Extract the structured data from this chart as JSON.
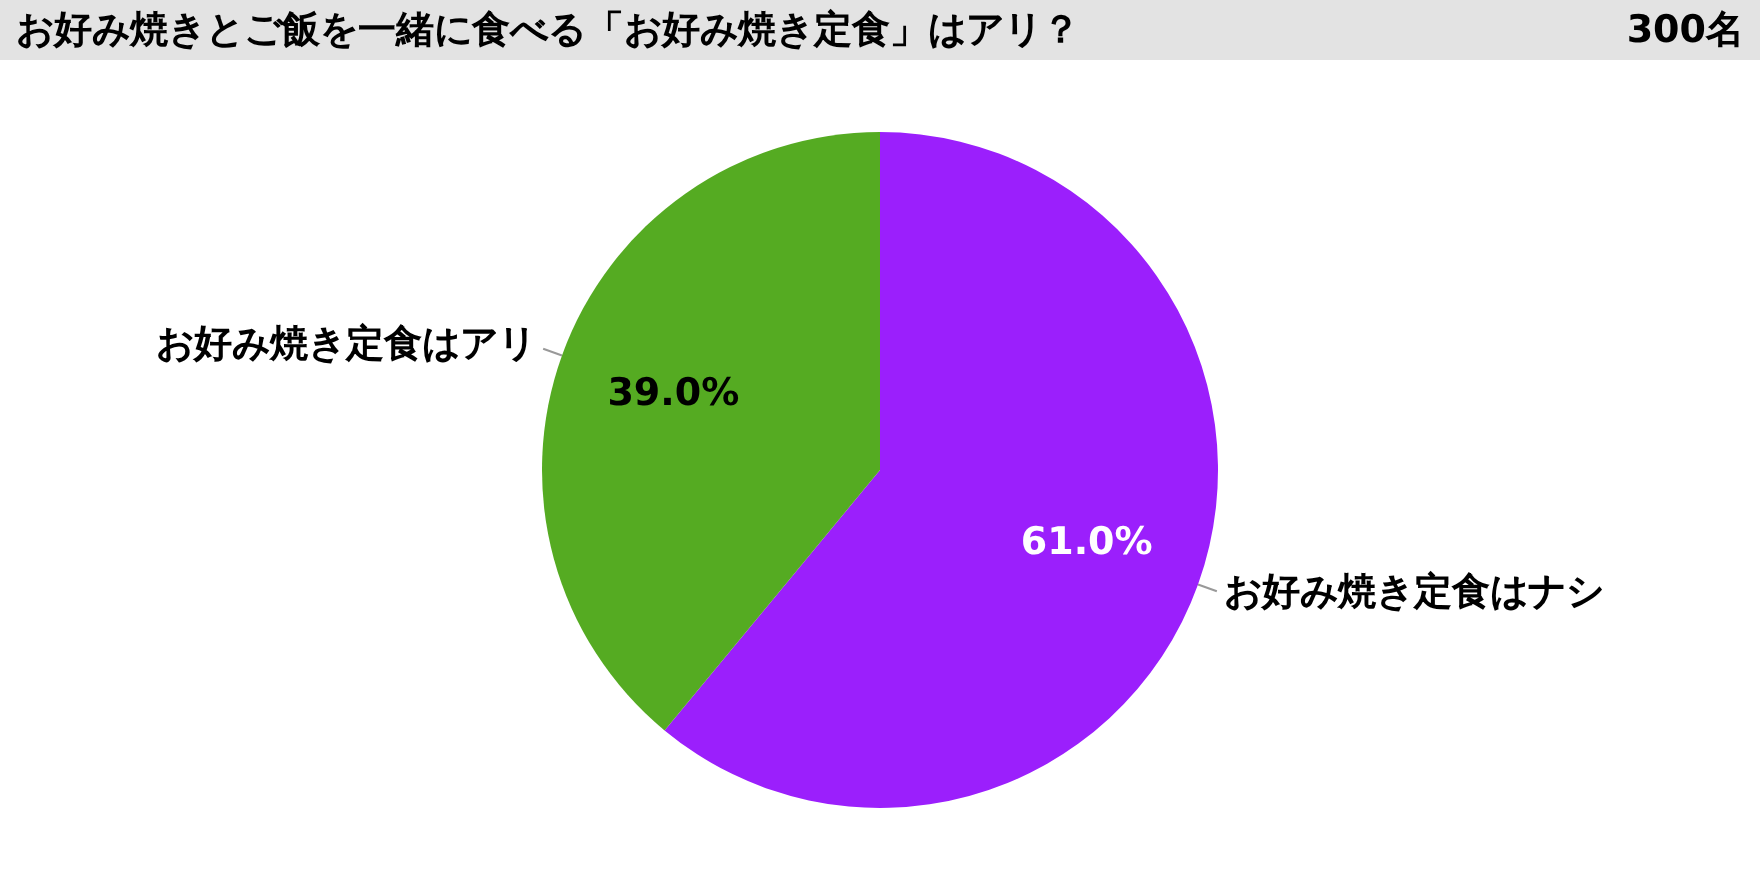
{
  "chart_data": {
    "type": "pie",
    "title": "お好み焼きとご飯を一緒に食べる「お好み焼き定食」はアリ？",
    "subtitle": "300名",
    "categories": [
      "お好み焼き定食はナシ",
      "お好み焼き定食はアリ"
    ],
    "values": [
      61.0,
      39.0
    ],
    "colors": [
      "#9b1ffc",
      "#55ab22"
    ],
    "value_labels": [
      "61.0%",
      "39.0%"
    ],
    "legend": false
  }
}
